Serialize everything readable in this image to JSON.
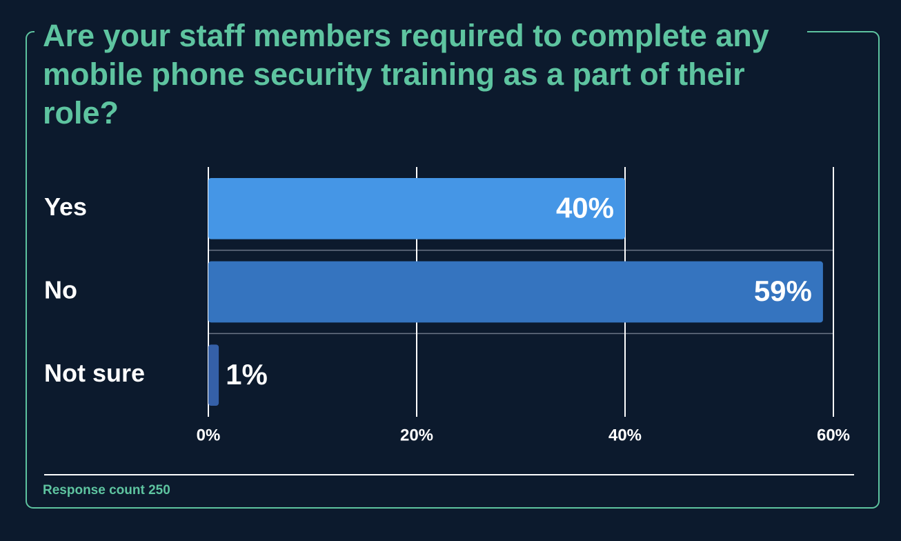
{
  "chart_data": {
    "type": "bar",
    "orientation": "horizontal",
    "title": "Are your staff members required to complete any mobile phone security training as a part of their role?",
    "categories": [
      "Yes",
      "No",
      "Not sure"
    ],
    "values": [
      40,
      59,
      1
    ],
    "value_labels": [
      "40%",
      "59%",
      "1%"
    ],
    "colors": [
      "#4596e6",
      "#3574bf",
      "#3560a8"
    ],
    "xlim": [
      0,
      60
    ],
    "xticks": [
      {
        "value": 0,
        "label": "0%"
      },
      {
        "value": 20,
        "label": "20%"
      },
      {
        "value": 40,
        "label": "40%"
      },
      {
        "value": 60,
        "label": "60%"
      }
    ],
    "grid": true,
    "footnote": "Response count 250"
  }
}
